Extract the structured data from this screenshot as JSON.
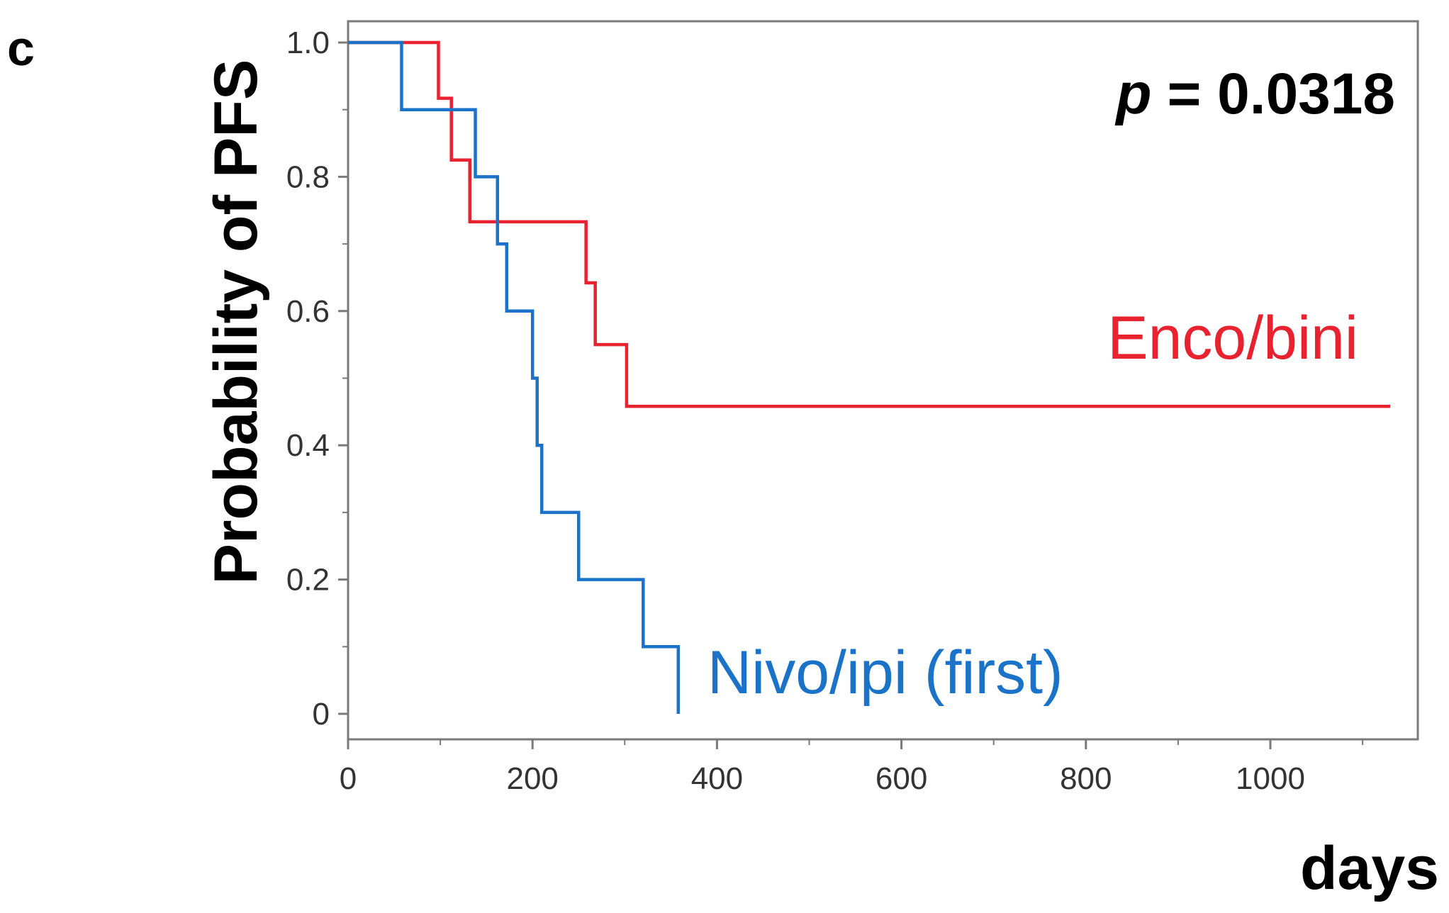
{
  "panel_label": "c",
  "annotation": {
    "p_symbol": "p",
    "p_value_text": "= 0.0318"
  },
  "colors": {
    "enco_bini": "#e8232f",
    "nivo_ipi": "#1a73c8",
    "axis": "#7a7a7a"
  },
  "chart_data": {
    "type": "line",
    "subtype": "kaplan-meier-step",
    "title": "",
    "xlabel": "days",
    "ylabel": "Probability of PFS",
    "xlim": [
      0,
      1160
    ],
    "ylim": [
      0,
      1.0
    ],
    "x_ticks": [
      0,
      200,
      400,
      600,
      800,
      1000
    ],
    "x_tick_labels": [
      "0",
      "200",
      "400",
      "600",
      "800",
      "1000"
    ],
    "y_ticks": [
      0,
      0.2,
      0.4,
      0.6,
      0.8,
      1.0
    ],
    "y_tick_labels": [
      "0",
      "0.2",
      "0.4",
      "0.6",
      "0.8",
      "1.0"
    ],
    "grid": false,
    "legend": "inline labels",
    "series": [
      {
        "name": "Enco/bini",
        "color": "#e8232f",
        "steps": [
          [
            0,
            1.0
          ],
          [
            98,
            0.917
          ],
          [
            112,
            0.825
          ],
          [
            132,
            0.733
          ],
          [
            258,
            0.642
          ],
          [
            268,
            0.55
          ],
          [
            302,
            0.458
          ],
          [
            1130,
            0.458
          ]
        ]
      },
      {
        "name": "Nivo/ipi (first)",
        "color": "#1a73c8",
        "steps": [
          [
            0,
            1.0
          ],
          [
            58,
            0.9
          ],
          [
            138,
            0.8
          ],
          [
            162,
            0.7
          ],
          [
            172,
            0.6
          ],
          [
            200,
            0.5
          ],
          [
            205,
            0.4
          ],
          [
            210,
            0.3
          ],
          [
            250,
            0.2
          ],
          [
            320,
            0.1
          ],
          [
            358,
            0.0
          ]
        ]
      }
    ]
  }
}
